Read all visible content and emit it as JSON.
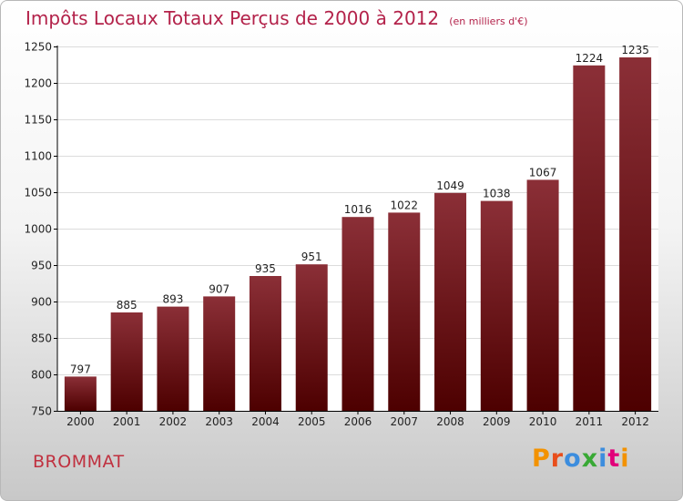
{
  "chart_data": {
    "type": "bar",
    "title": "Impôts Locaux Totaux Perçus de 2000 à 2012",
    "unit": "(en milliers d'€)",
    "categories": [
      "2000",
      "2001",
      "2002",
      "2003",
      "2004",
      "2005",
      "2006",
      "2007",
      "2008",
      "2009",
      "2010",
      "2011",
      "2012"
    ],
    "values": [
      797,
      885,
      893,
      907,
      935,
      951,
      1016,
      1022,
      1049,
      1038,
      1067,
      1224,
      1235
    ],
    "ylim": [
      750,
      1250
    ],
    "yticks": [
      750,
      800,
      850,
      900,
      950,
      1000,
      1050,
      1100,
      1150,
      1200,
      1250
    ],
    "xlabel": "",
    "ylabel": "",
    "grid": true,
    "bar_color_top": "#8b2f37",
    "bar_color_bottom": "#4d0000"
  },
  "commune": "BROMMAT",
  "brand": {
    "name": "Proxiti",
    "letters": [
      "P",
      "r",
      "o",
      "x",
      "i",
      "t",
      "i"
    ],
    "letter_colors": [
      "#f39200",
      "#e94e1b",
      "#3c8dde",
      "#39a935",
      "#3c8dde",
      "#e2007a",
      "#f39200"
    ]
  }
}
